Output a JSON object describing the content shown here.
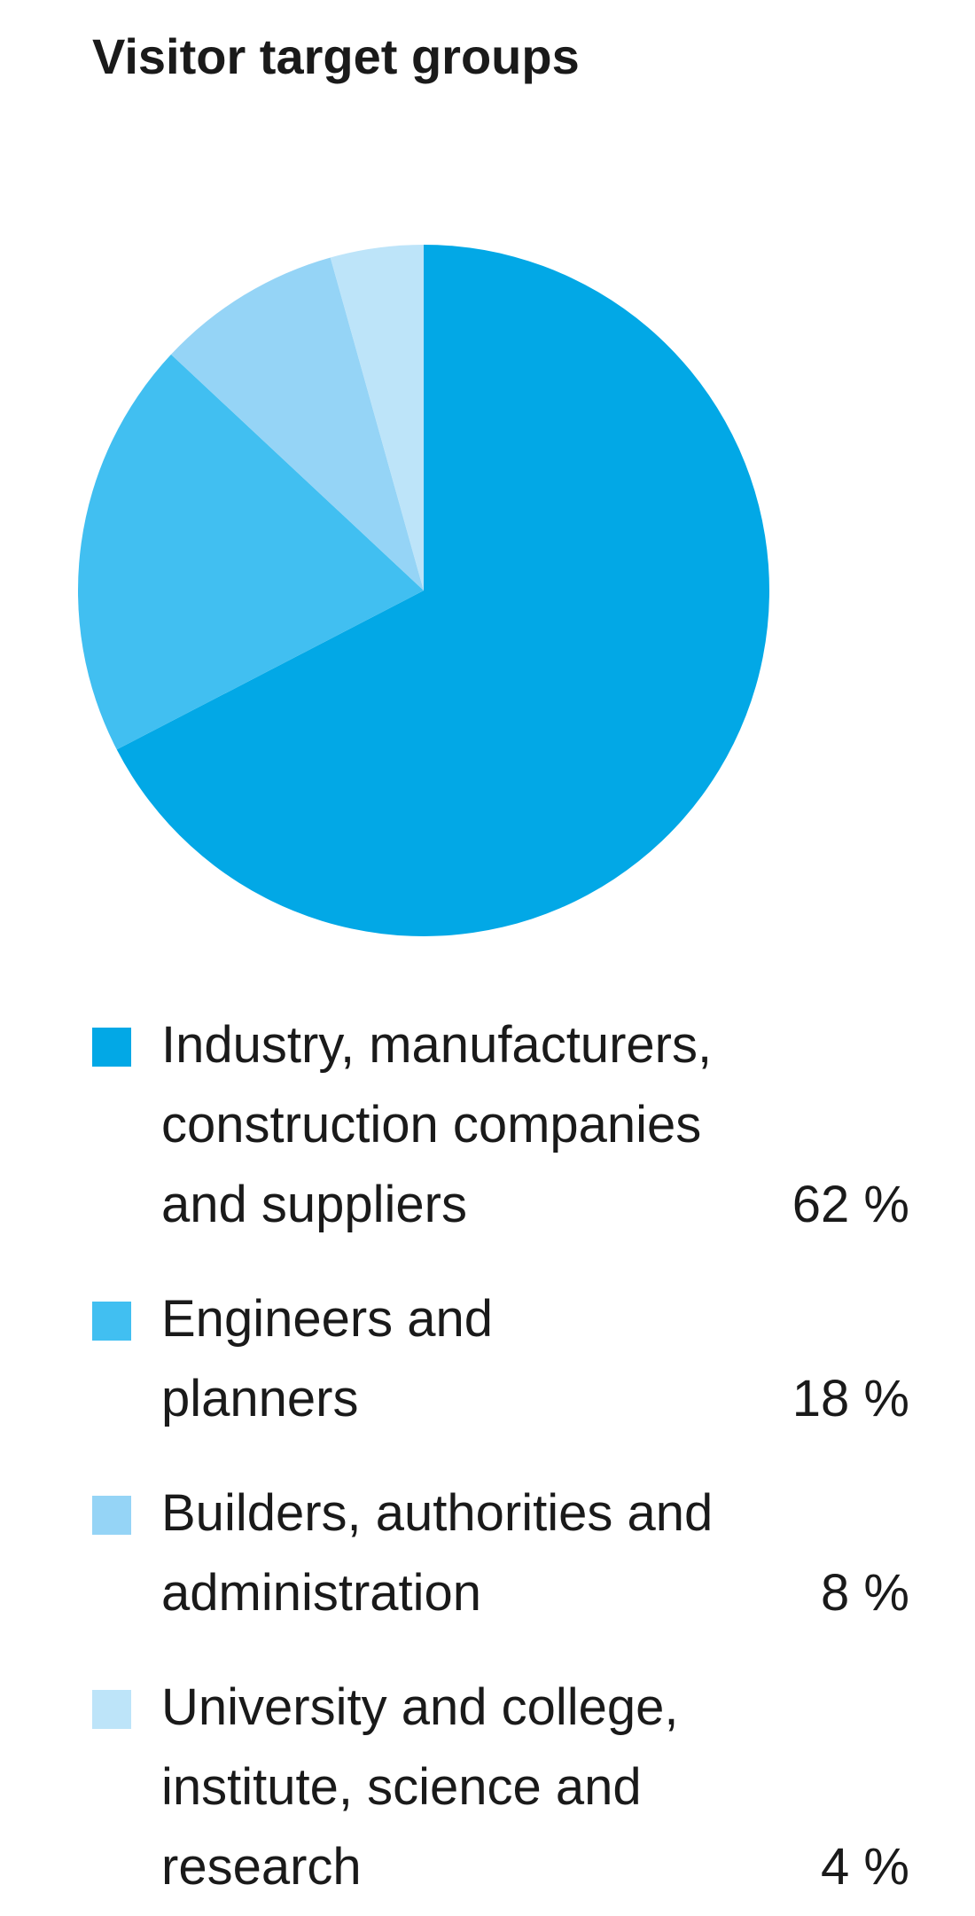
{
  "chart_data": {
    "type": "pie",
    "title": "Visitor target groups",
    "start_angle": "12 o'clock, clockwise",
    "legend_position": "bottom",
    "slices": [
      {
        "lines": [
          "Industry, manufacturers,",
          "construction companies",
          "and suppliers"
        ],
        "value": 62,
        "value_label": "62 %",
        "color": "#02a8e6"
      },
      {
        "lines": [
          "Engineers and",
          "planners"
        ],
        "value": 18,
        "value_label": "18 %",
        "color": "#41bff1"
      },
      {
        "lines": [
          "Builders, authorities and",
          "administration"
        ],
        "value": 8,
        "value_label": "8 %",
        "color": "#95d4f6"
      },
      {
        "lines": [
          "University and college,",
          "institute, science and",
          "research"
        ],
        "value": 4,
        "value_label": "4 %",
        "color": "#bde4f9"
      }
    ]
  }
}
